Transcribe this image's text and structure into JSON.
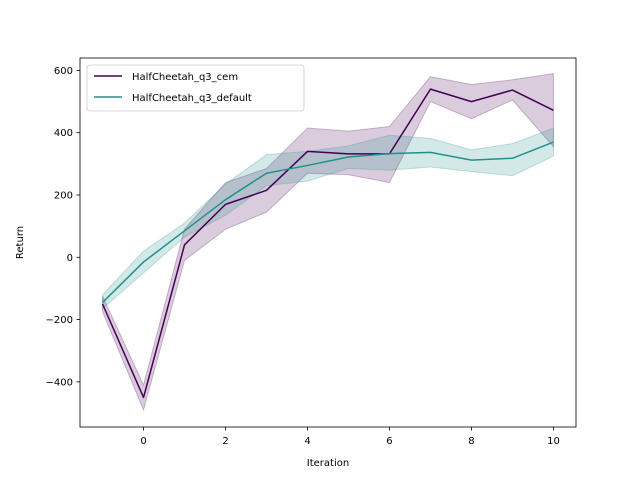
{
  "chart_data": {
    "type": "line",
    "xlabel": "Iteration",
    "ylabel": "Return",
    "xlim": [
      -1.55,
      10.55
    ],
    "ylim": [
      -545,
      640
    ],
    "xticks": [
      0,
      2,
      4,
      6,
      8,
      10
    ],
    "yticks": [
      -400,
      -200,
      0,
      200,
      400,
      600
    ],
    "x": [
      -1,
      0,
      1,
      2,
      3,
      4,
      5,
      6,
      7,
      8,
      9,
      10
    ],
    "legend_position": "top-left",
    "grid": false,
    "series": [
      {
        "name": "HalfCheetah_q3_cem",
        "color": "#440154",
        "values": [
          -150,
          -450,
          40,
          170,
          215,
          340,
          332,
          332,
          540,
          500,
          537,
          472
        ],
        "lower": [
          -175,
          -490,
          -10,
          90,
          145,
          270,
          265,
          240,
          500,
          445,
          505,
          355
        ],
        "upper": [
          -125,
          -410,
          90,
          240,
          285,
          415,
          405,
          420,
          580,
          555,
          570,
          590
        ]
      },
      {
        "name": "HalfCheetah_q3_default",
        "color": "#21918c",
        "values": [
          -145,
          -15,
          85,
          185,
          270,
          295,
          322,
          333,
          337,
          312,
          318,
          370
        ],
        "lower": [
          -165,
          -50,
          65,
          135,
          230,
          245,
          285,
          280,
          290,
          275,
          262,
          325
        ],
        "upper": [
          -120,
          20,
          110,
          235,
          330,
          340,
          358,
          392,
          382,
          345,
          365,
          415
        ]
      }
    ]
  }
}
